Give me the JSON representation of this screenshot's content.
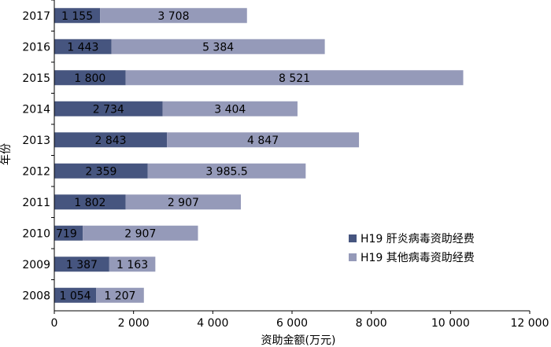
{
  "chart_data": {
    "type": "bar",
    "orientation": "horizontal",
    "stacked": true,
    "categories": [
      "2017",
      "2016",
      "2015",
      "2014",
      "2013",
      "2012",
      "2011",
      "2010",
      "2009",
      "2008"
    ],
    "series": [
      {
        "name": "H19 肝炎病毒资助经费",
        "values": [
          1155,
          1443,
          1800,
          2734,
          2843,
          2359,
          1802,
          719,
          1387,
          1054
        ],
        "labels": [
          "1 155",
          "1 443",
          "1 800",
          "2 734",
          "2 843",
          "2 359",
          "1 802",
          "719",
          "1 387",
          "1 054"
        ],
        "color": "#46557f"
      },
      {
        "name": "H19 其他病毒资助经费",
        "values": [
          3708,
          5384,
          8521,
          3404,
          4847,
          3985.5,
          2907,
          2907,
          1163,
          1207
        ],
        "labels": [
          "3 708",
          "5 384",
          "8 521",
          "3 404",
          "4 847",
          "3 985.5",
          "2 907",
          "2 907",
          "1 163",
          "1 207"
        ],
        "color": "#959ab9"
      }
    ],
    "xlabel": "资助金额(万元)",
    "ylabel": "年份",
    "xlim": [
      0,
      12000
    ],
    "xticks": [
      0,
      2000,
      4000,
      6000,
      8000,
      10000,
      12000
    ],
    "xtick_labels": [
      "0",
      "2 000",
      "4 000",
      "6 000",
      "8 000",
      "10 000",
      "12 000"
    ],
    "grid": false,
    "legend_position": "right"
  }
}
